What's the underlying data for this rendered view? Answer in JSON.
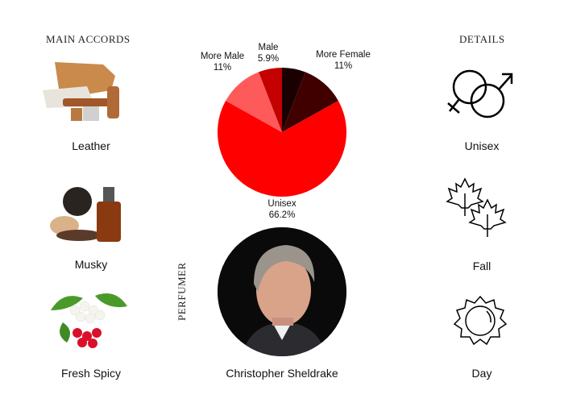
{
  "accords": {
    "heading": "MAIN ACCORDS",
    "items": [
      {
        "label": "Leather",
        "icon": "leather-image"
      },
      {
        "label": "Musky",
        "icon": "musk-image"
      },
      {
        "label": "Fresh Spicy",
        "icon": "hawthorn-flowers-image"
      }
    ]
  },
  "details": {
    "heading": "DETAILS",
    "items": [
      {
        "label": "Unisex",
        "icon": "gender-symbols-icon"
      },
      {
        "label": "Fall",
        "icon": "maple-leaves-icon"
      },
      {
        "label": "Day",
        "icon": "sun-icon"
      }
    ]
  },
  "perfumer": {
    "heading": "PERFUMER",
    "name": "Christopher Sheldrake"
  },
  "chart_data": {
    "type": "pie",
    "start": "top",
    "direction": "clockwise",
    "slices": [
      {
        "name": "",
        "value": 5.9,
        "label": "",
        "color": "#1a0000"
      },
      {
        "name": "More Female",
        "value": 11,
        "label": "11%",
        "color": "#400000"
      },
      {
        "name": "Unisex",
        "value": 66.2,
        "label": "66.2%",
        "color": "#ff0000"
      },
      {
        "name": "More Male",
        "value": 11,
        "label": "11%",
        "color": "#ff5a5a"
      },
      {
        "name": "Male",
        "value": 5.9,
        "label": "5.9%",
        "color": "#c40000"
      }
    ]
  }
}
